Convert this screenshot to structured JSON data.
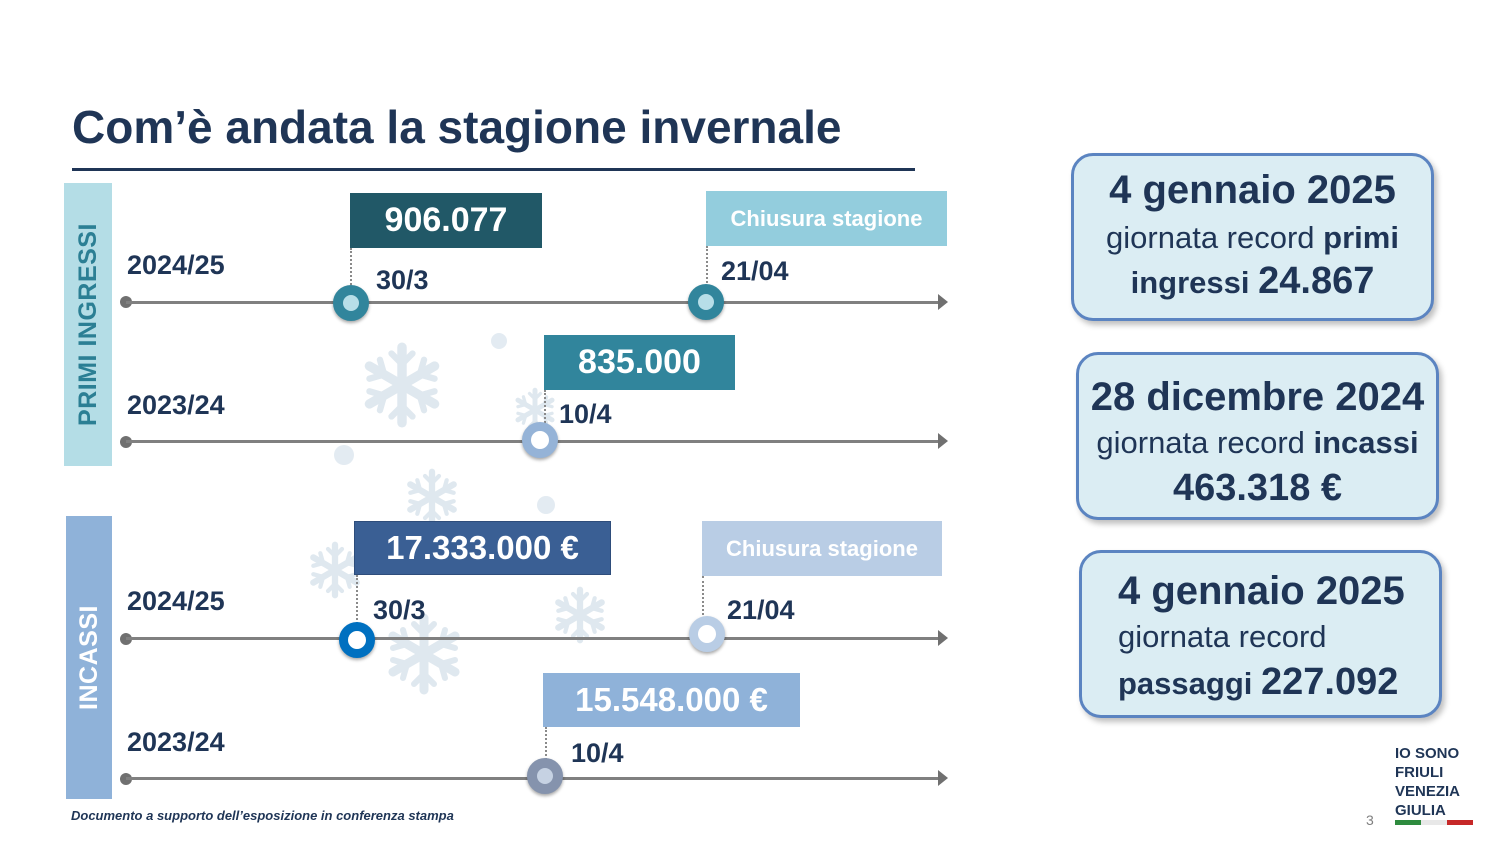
{
  "title": "Com’è andata la stagione invernale",
  "colors": {
    "primary": "#1f3556",
    "ingressi_side": "#b4dde6",
    "incassi_side": "#8fb2d9",
    "box_906": "#215867",
    "box_835": "#31859c",
    "box_17m": "#3a5f94",
    "box_15m": "#8fb2d9",
    "chiusura_top": "#93cddd",
    "chiusura_bottom": "#b9cde5",
    "card_bg": "#dbedf3",
    "card_border": "#5b84c1"
  },
  "sections": {
    "ingressi_label": "PRIMI INGRESSI",
    "incassi_label": "INCASSI"
  },
  "ingressi": {
    "y2425": {
      "year": "2024/25",
      "value": "906.077",
      "date": "30/3",
      "close_label": "Chiusura stagione",
      "close_date": "21/04"
    },
    "y2324": {
      "year": "2023/24",
      "value": "835.000",
      "date": "10/4"
    }
  },
  "incassi": {
    "y2425": {
      "year": "2024/25",
      "value": "17.333.000 €",
      "date": "30/3",
      "close_label": "Chiusura stagione",
      "close_date": "21/04"
    },
    "y2324": {
      "year": "2023/24",
      "value": "15.548.000 €",
      "date": "10/4"
    }
  },
  "cards": [
    {
      "date": "4 gennaio 2025",
      "text1": "giornata record ",
      "bold1": "primi",
      "text2": "ingressi ",
      "value": "24.867"
    },
    {
      "date": "28 dicembre 2024",
      "text1": "giornata record ",
      "bold1": "incassi",
      "value": "463.318 €"
    },
    {
      "date": "4 gennaio 2025",
      "text1": "giornata record",
      "text2": "passaggi ",
      "value": "227.092"
    }
  ],
  "footer": {
    "note": "Documento a supporto dell’esposizione in conferenza stampa",
    "page": "3",
    "logo_lines": [
      "IO SONO",
      "FRIULI",
      "VENEZIA",
      "GIULIA"
    ]
  }
}
